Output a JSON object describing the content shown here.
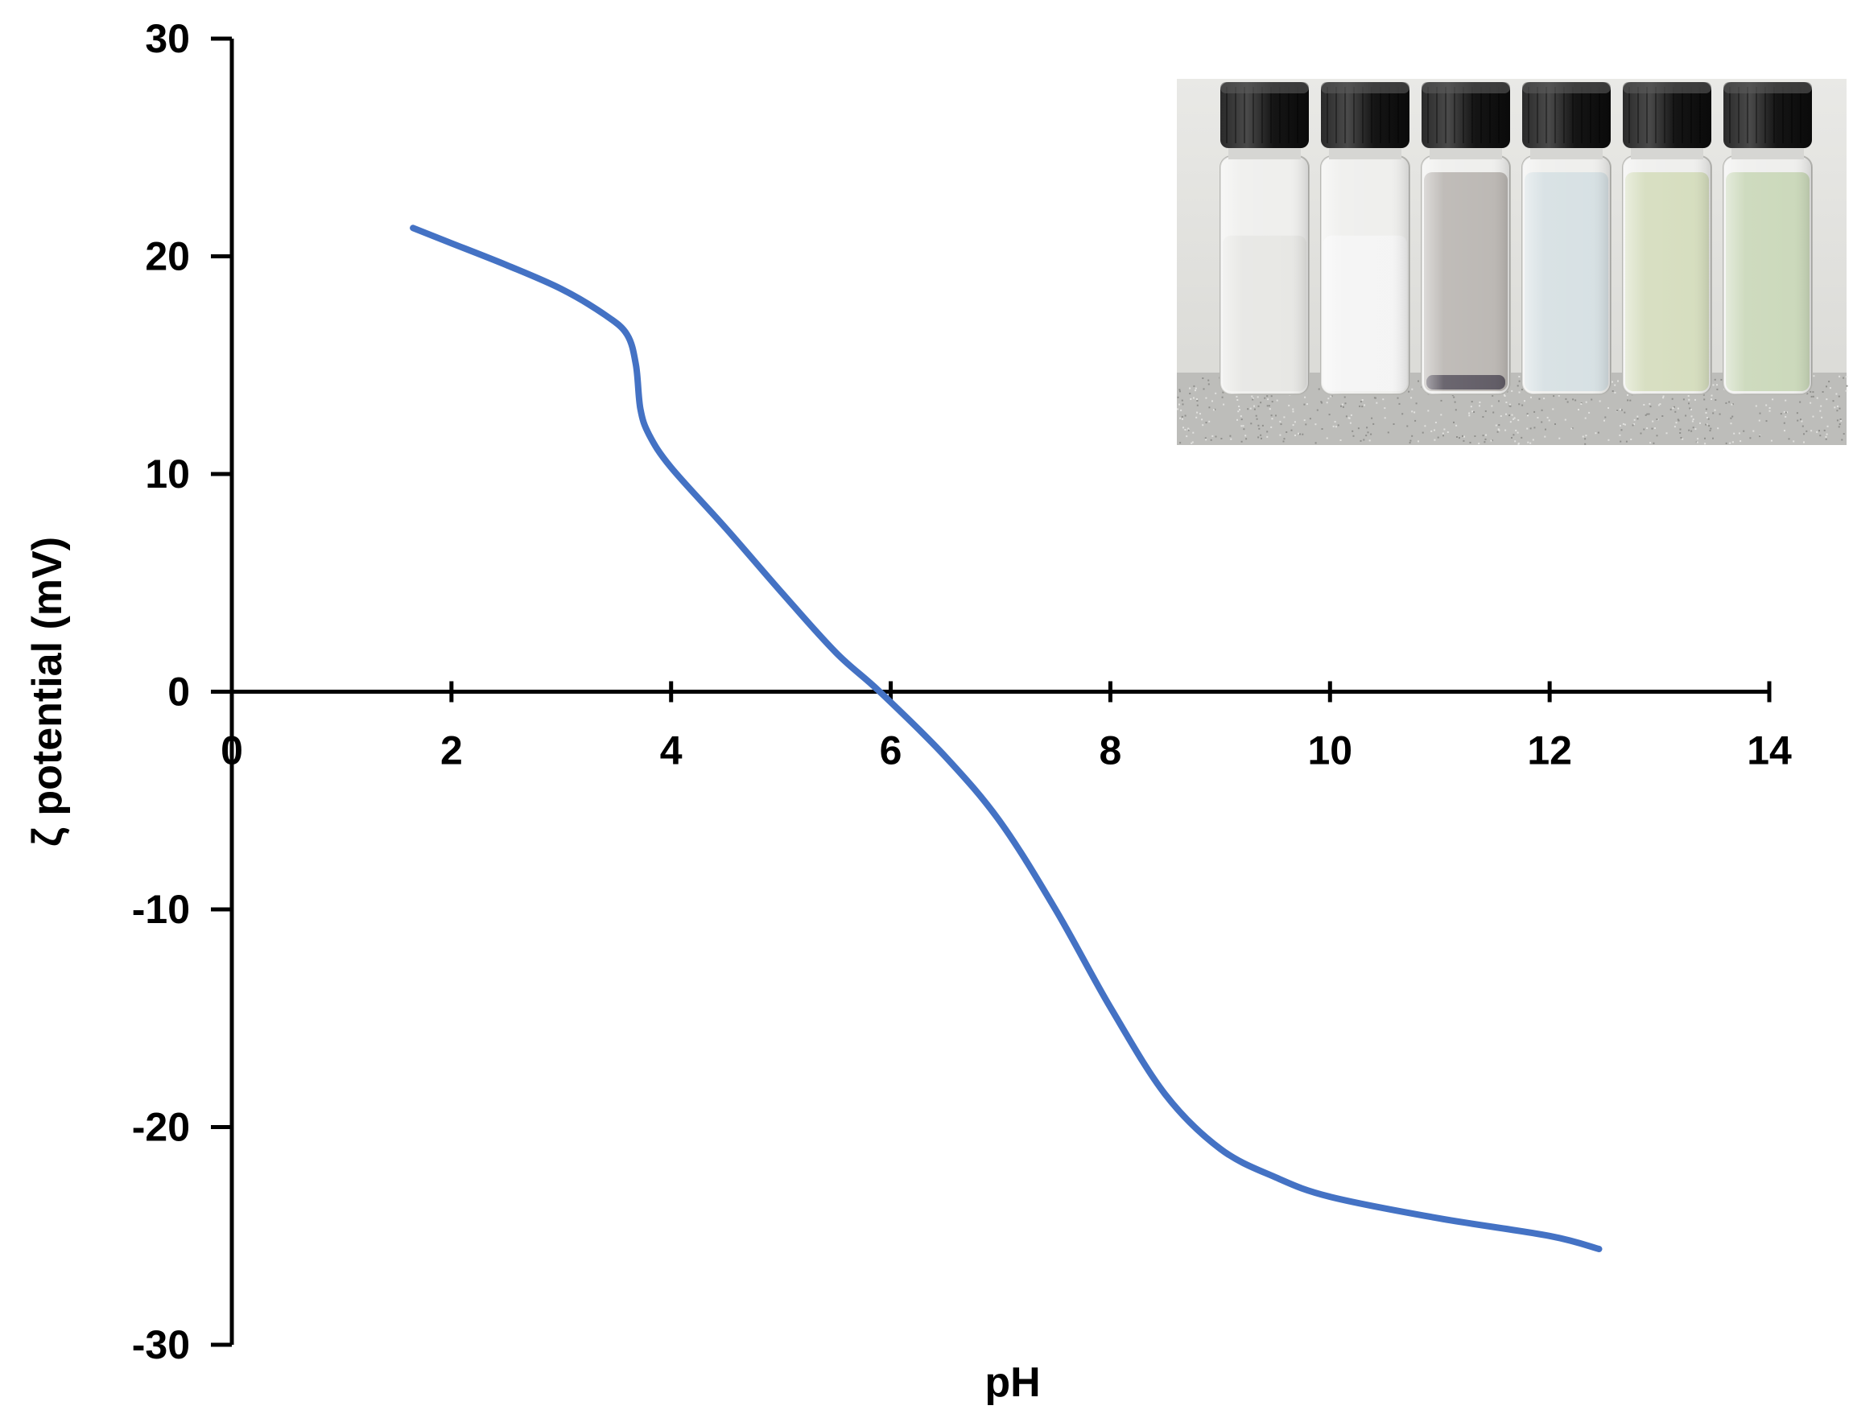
{
  "chart_data": {
    "type": "line",
    "xlabel": "pH",
    "ylabel": "ζ potential (mV)",
    "xlim": [
      0,
      14
    ],
    "ylim": [
      -30,
      30
    ],
    "x_ticks": [
      "0",
      "2",
      "4",
      "6",
      "8",
      "10",
      "12",
      "14"
    ],
    "y_ticks": [
      "30",
      "20",
      "10",
      "0",
      "-10",
      "-20",
      "-30"
    ],
    "grid": false,
    "legend": "none",
    "series": [
      {
        "color": "#4472C4",
        "points": [
          [
            1.65,
            21.3
          ],
          [
            2.0,
            20.6
          ],
          [
            2.5,
            19.6
          ],
          [
            3.0,
            18.5
          ],
          [
            3.4,
            17.3
          ],
          [
            3.6,
            16.4
          ],
          [
            3.68,
            15.0
          ],
          [
            3.72,
            13.0
          ],
          [
            3.8,
            11.8
          ],
          [
            4.0,
            10.3
          ],
          [
            4.5,
            7.5
          ],
          [
            5.0,
            4.6
          ],
          [
            5.5,
            1.8
          ],
          [
            5.9,
            0.0
          ],
          [
            6.5,
            -3.0
          ],
          [
            7.0,
            -6.0
          ],
          [
            7.5,
            -10.0
          ],
          [
            8.0,
            -14.5
          ],
          [
            8.5,
            -18.5
          ],
          [
            9.0,
            -21.0
          ],
          [
            9.5,
            -22.3
          ],
          [
            10.0,
            -23.2
          ],
          [
            11.0,
            -24.2
          ],
          [
            12.0,
            -25.0
          ],
          [
            12.45,
            -25.6
          ]
        ]
      }
    ]
  },
  "inset": {
    "vials": [
      {
        "liquid": "#e6e6e3",
        "fill_level": 0.72,
        "sediment": false
      },
      {
        "liquid": "#f4f4f4",
        "fill_level": 0.72,
        "sediment": false
      },
      {
        "liquid": "#b9b5b1",
        "fill_level": 1.0,
        "sediment": true
      },
      {
        "liquid": "#d5dfe2",
        "fill_level": 1.0,
        "sediment": false
      },
      {
        "liquid": "#d4dcbc",
        "fill_level": 1.0,
        "sediment": false
      },
      {
        "liquid": "#c9d7b8",
        "fill_level": 1.0,
        "sediment": false
      }
    ]
  }
}
